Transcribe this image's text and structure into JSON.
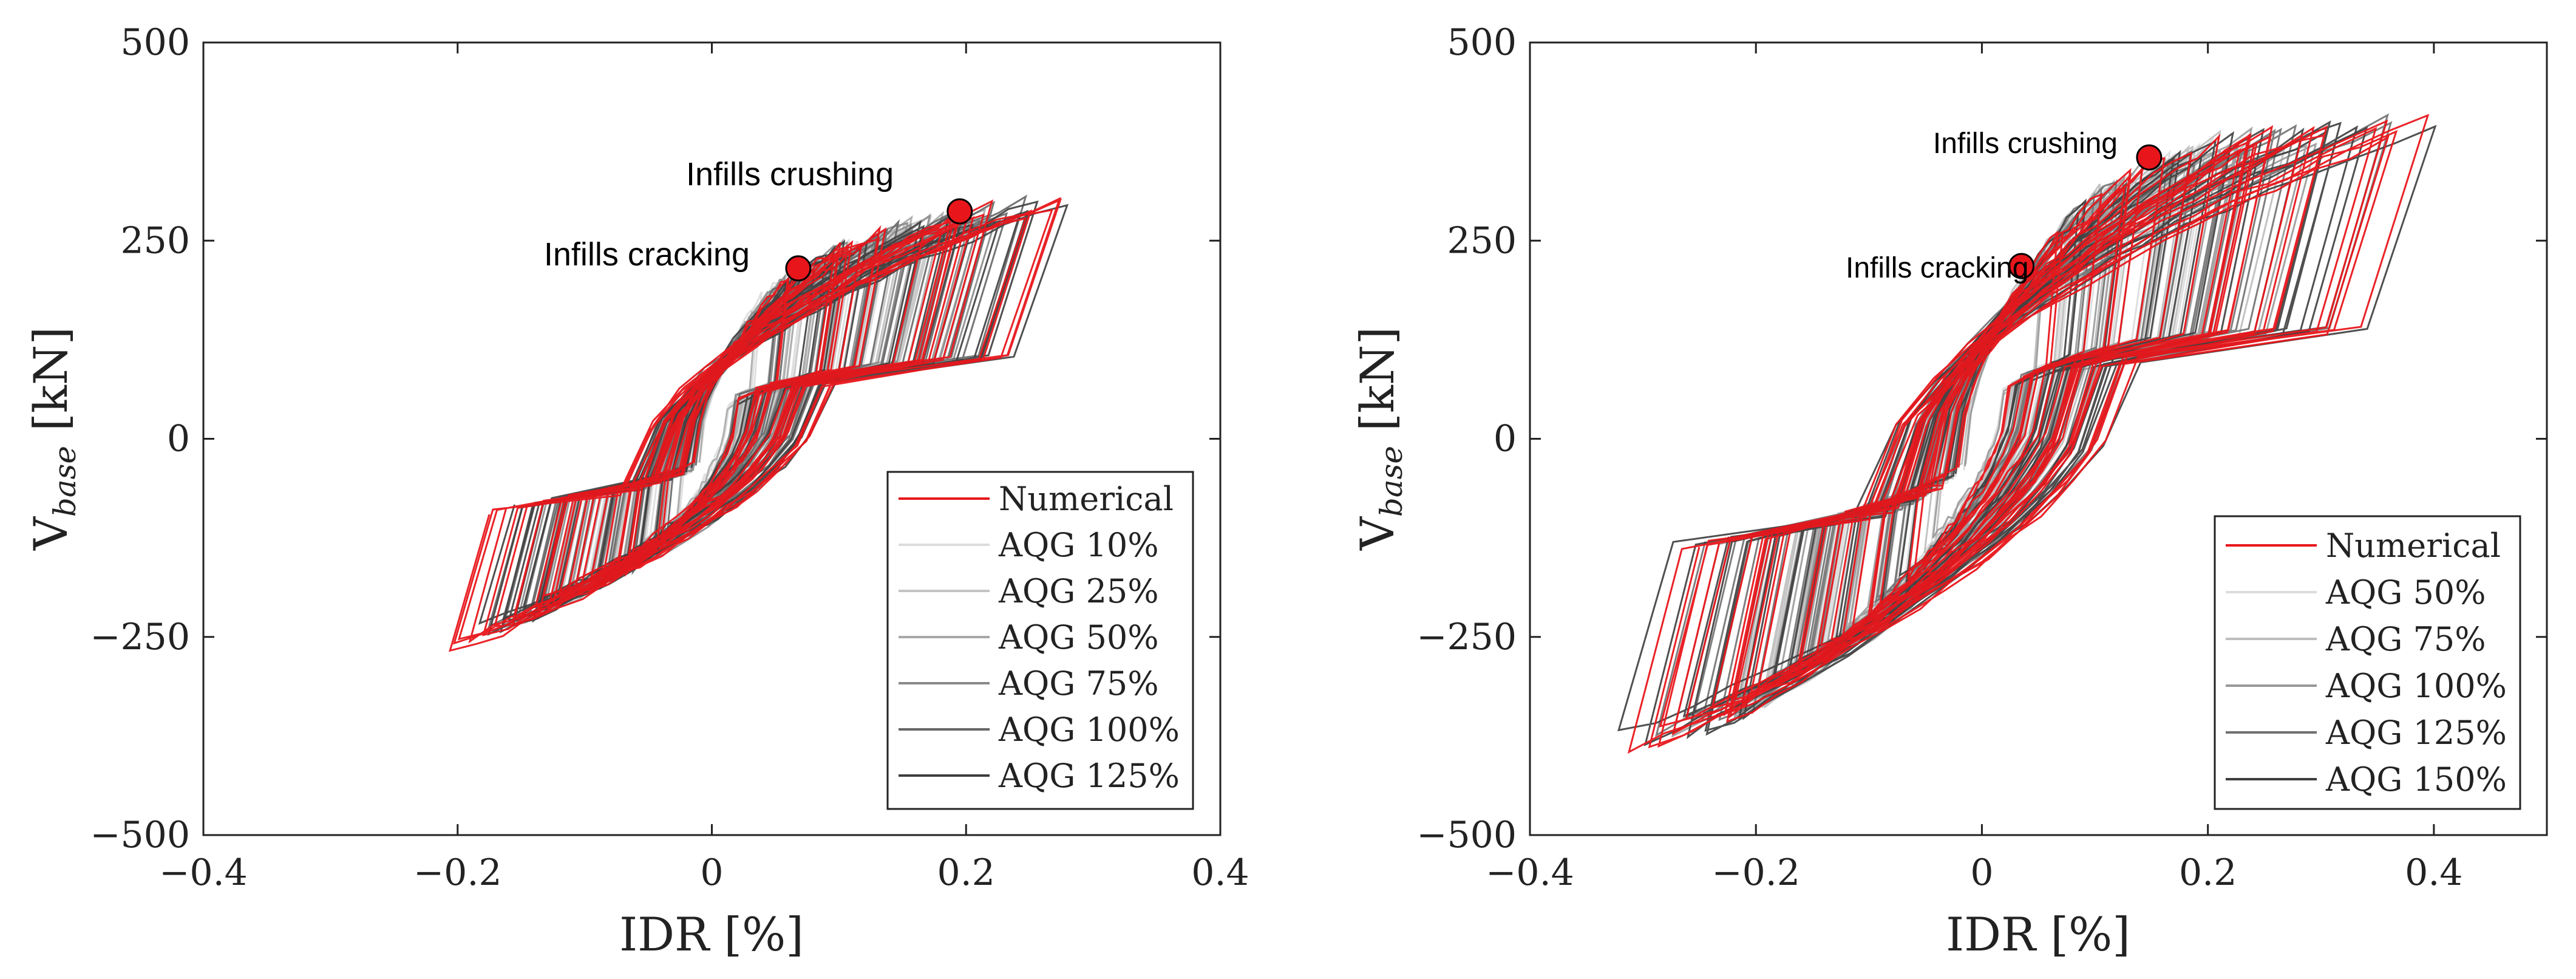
{
  "chart_data": [
    {
      "type": "line",
      "xlabel": "IDR [%]",
      "ylabel_main": "V",
      "ylabel_sub": "base",
      "ylabel_unit": " [kN]",
      "xlim": [
        -0.4,
        0.4
      ],
      "ylim": [
        -500,
        500
      ],
      "xticks": [
        -0.4,
        -0.2,
        0,
        0.2,
        0.4
      ],
      "xtick_labels": [
        "−0.4",
        "−0.2",
        "0",
        "0.2",
        "0.4"
      ],
      "yticks": [
        -500,
        -250,
        0,
        250,
        500
      ],
      "ytick_labels": [
        "−500",
        "−250",
        "0",
        "250",
        "500"
      ],
      "legend_position": "bottom-right",
      "legend": [
        {
          "name": "Numerical",
          "color": "#e8161b"
        },
        {
          "name": "AQG 10%",
          "color": "#dcdcdc"
        },
        {
          "name": "AQG 25%",
          "color": "#c4c4c4"
        },
        {
          "name": "AQG 50%",
          "color": "#a8a8a8"
        },
        {
          "name": "AQG 75%",
          "color": "#8a8a8a"
        },
        {
          "name": "AQG 100%",
          "color": "#666666"
        },
        {
          "name": "AQG 125%",
          "color": "#3d3d3d"
        }
      ],
      "envelope": {
        "pos_x": [
          0,
          0.02,
          0.04,
          0.06,
          0.08,
          0.12,
          0.16,
          0.2,
          0.24,
          0.28,
          0.3
        ],
        "pos_y": [
          0,
          120,
          185,
          210,
          230,
          262,
          280,
          290,
          300,
          305,
          310
        ],
        "neg_x": [
          0,
          -0.02,
          -0.04,
          -0.06,
          -0.08,
          -0.1,
          -0.13,
          -0.16,
          -0.19,
          -0.21
        ],
        "neg_y": [
          0,
          -90,
          -140,
          -165,
          -178,
          -195,
          -218,
          -240,
          -262,
          -283
        ]
      },
      "annotations": [
        {
          "text": "Infills cracking",
          "x": 0.068,
          "y": 215
        },
        {
          "text": "Infills crushing",
          "x": 0.195,
          "y": 287
        }
      ]
    },
    {
      "type": "line",
      "xlabel": "IDR [%]",
      "ylabel_main": "V",
      "ylabel_sub": "base",
      "ylabel_unit": " [kN]",
      "xlim": [
        -0.4,
        0.5
      ],
      "ylim": [
        -500,
        500
      ],
      "xticks": [
        -0.4,
        -0.2,
        0,
        0.2,
        0.4
      ],
      "xtick_labels": [
        "−0.4",
        "−0.2",
        "0",
        "0.2",
        "0.4"
      ],
      "yticks": [
        -500,
        -250,
        0,
        250,
        500
      ],
      "ytick_labels": [
        "−500",
        "−250",
        "0",
        "250",
        "500"
      ],
      "legend_position": "bottom-right",
      "legend": [
        {
          "name": "Numerical",
          "color": "#e8161b"
        },
        {
          "name": "AQG 50%",
          "color": "#dcdcdc"
        },
        {
          "name": "AQG 75%",
          "color": "#bdbdbd"
        },
        {
          "name": "AQG 100%",
          "color": "#999999"
        },
        {
          "name": "AQG 125%",
          "color": "#707070"
        },
        {
          "name": "AQG 150%",
          "color": "#3d3d3d"
        }
      ],
      "envelope": {
        "pos_x": [
          0,
          0.02,
          0.035,
          0.06,
          0.1,
          0.15,
          0.2,
          0.26,
          0.32,
          0.38,
          0.42
        ],
        "pos_y": [
          0,
          140,
          218,
          270,
          315,
          355,
          380,
          395,
          402,
          405,
          405
        ],
        "neg_x": [
          0,
          -0.03,
          -0.06,
          -0.1,
          -0.14,
          -0.18,
          -0.22,
          -0.26,
          -0.3,
          -0.34
        ],
        "neg_y": [
          0,
          -110,
          -170,
          -230,
          -280,
          -330,
          -360,
          -380,
          -395,
          -405
        ]
      },
      "annotations": [
        {
          "text": "Infills cracking",
          "x": 0.035,
          "y": 218
        },
        {
          "text": "Infills crushing",
          "x": 0.148,
          "y": 355
        }
      ]
    }
  ]
}
